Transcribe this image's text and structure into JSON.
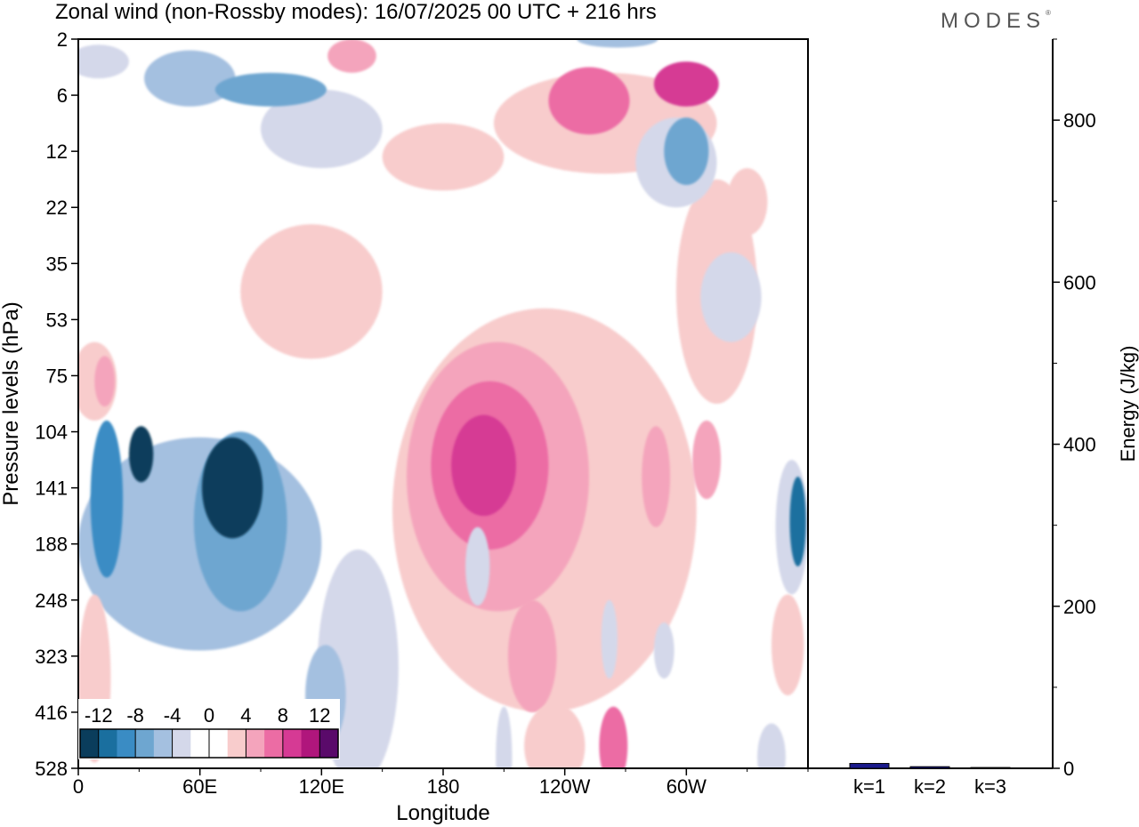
{
  "title": "Zonal wind (non-Rossby modes):  16/07/2025  00 UTC  + 216 hrs",
  "brand": "MODES",
  "brand_mark": "®",
  "chart_data": [
    {
      "type": "heatmap",
      "title": "Zonal wind (non-Rossby modes):  16/07/2025  00 UTC  + 216 hrs",
      "xlabel": "Longitude",
      "ylabel": "Pressure levels (hPa)",
      "x_ticks": [
        "0",
        "60E",
        "120E",
        "180",
        "120W",
        "60W"
      ],
      "y_ticks": [
        "2",
        "6",
        "12",
        "22",
        "35",
        "53",
        "75",
        "104",
        "141",
        "188",
        "248",
        "323",
        "416",
        "528"
      ],
      "colorbar": {
        "labels": [
          "-12",
          "-8",
          "-4",
          "0",
          "4",
          "8",
          "12"
        ],
        "colors": [
          "#0a3d5c",
          "#1a6f9f",
          "#3a8cc4",
          "#6ea6d0",
          "#a4c0e0",
          "#d4d8ea",
          "#ffffff",
          "#ffffff",
          "#f8cccc",
          "#f4a4bc",
          "#ec6ca4",
          "#d63a94",
          "#b0167c",
          "#5a0a6a"
        ]
      },
      "regions": [
        {
          "sign": "neg",
          "level": 6,
          "lon": 31,
          "lev": 7.4,
          "w": 12,
          "h": 1.0
        },
        {
          "sign": "neg",
          "level": 6,
          "lon": 76,
          "lev": 8.0,
          "w": 30,
          "h": 1.8
        },
        {
          "sign": "neg",
          "level": 4,
          "lon": 14,
          "lev": 8.2,
          "w": 16,
          "h": 2.8
        },
        {
          "sign": "neg",
          "level": 3,
          "lon": 80,
          "lev": 8.6,
          "w": 46,
          "h": 3.2
        },
        {
          "sign": "neg",
          "level": 2,
          "lon": 60,
          "lev": 9.0,
          "w": 120,
          "h": 3.8
        },
        {
          "sign": "neg",
          "level": 2,
          "lon": 122,
          "lev": 11.7,
          "w": 20,
          "h": 1.8
        },
        {
          "sign": "neg",
          "level": 1,
          "lon": 138,
          "lev": 11.2,
          "w": 40,
          "h": 4.2
        },
        {
          "sign": "neg",
          "level": 5,
          "lon": 355,
          "lev": 8.6,
          "w": 8,
          "h": 1.6
        },
        {
          "sign": "neg",
          "level": 1,
          "lon": 352,
          "lev": 8.7,
          "w": 16,
          "h": 2.4
        },
        {
          "sign": "neg",
          "level": 1,
          "lon": 197,
          "lev": 9.4,
          "w": 12,
          "h": 1.4
        },
        {
          "sign": "neg",
          "level": 1,
          "lon": 262,
          "lev": 10.7,
          "w": 8,
          "h": 1.4
        },
        {
          "sign": "neg",
          "level": 1,
          "lon": 289,
          "lev": 10.9,
          "w": 10,
          "h": 1.0
        },
        {
          "sign": "neg",
          "level": 1,
          "lon": 342,
          "lev": 12.8,
          "w": 14,
          "h": 1.2
        },
        {
          "sign": "neg",
          "level": 1,
          "lon": 210,
          "lev": 12.8,
          "w": 8,
          "h": 1.8
        },
        {
          "sign": "neg",
          "level": 1,
          "lon": 322,
          "lev": 4.6,
          "w": 30,
          "h": 1.6
        },
        {
          "sign": "neg",
          "level": 3,
          "lon": 95,
          "lev": 0.9,
          "w": 55,
          "h": 0.6
        },
        {
          "sign": "neg",
          "level": 2,
          "lon": 55,
          "lev": 0.7,
          "w": 45,
          "h": 1.0
        },
        {
          "sign": "neg",
          "level": 3,
          "lon": 300,
          "lev": 2.0,
          "w": 22,
          "h": 1.2
        },
        {
          "sign": "neg",
          "level": 1,
          "lon": 295,
          "lev": 2.2,
          "w": 40,
          "h": 1.6
        },
        {
          "sign": "neg",
          "level": 1,
          "lon": 10,
          "lev": 0.4,
          "w": 30,
          "h": 0.6
        },
        {
          "sign": "neg",
          "level": 2,
          "lon": 266,
          "lev": 0.0,
          "w": 40,
          "h": 0.3
        },
        {
          "sign": "neg",
          "level": 1,
          "lon": 120,
          "lev": 1.6,
          "w": 60,
          "h": 1.4
        },
        {
          "sign": "pos",
          "level": 4,
          "lon": 200,
          "lev": 7.6,
          "w": 32,
          "h": 1.8
        },
        {
          "sign": "pos",
          "level": 3,
          "lon": 203,
          "lev": 7.6,
          "w": 58,
          "h": 3.0
        },
        {
          "sign": "pos",
          "level": 2,
          "lon": 207,
          "lev": 7.8,
          "w": 90,
          "h": 4.8
        },
        {
          "sign": "pos",
          "level": 1,
          "lon": 230,
          "lev": 8.4,
          "w": 150,
          "h": 7.2
        },
        {
          "sign": "pos",
          "level": 1,
          "lon": 115,
          "lev": 4.5,
          "w": 70,
          "h": 2.4
        },
        {
          "sign": "pos",
          "level": 1,
          "lon": 8,
          "lev": 6.1,
          "w": 22,
          "h": 1.4
        },
        {
          "sign": "pos",
          "level": 2,
          "lon": 13,
          "lev": 6.1,
          "w": 10,
          "h": 0.9
        },
        {
          "sign": "pos",
          "level": 2,
          "lon": 224,
          "lev": 11.0,
          "w": 24,
          "h": 2.0
        },
        {
          "sign": "pos",
          "level": 1,
          "lon": 235,
          "lev": 12.6,
          "w": 30,
          "h": 1.5
        },
        {
          "sign": "pos",
          "level": 3,
          "lon": 264,
          "lev": 12.6,
          "w": 14,
          "h": 1.4
        },
        {
          "sign": "pos",
          "level": 1,
          "lon": 8,
          "lev": 11.4,
          "w": 16,
          "h": 3.0
        },
        {
          "sign": "pos",
          "level": 2,
          "lon": 310,
          "lev": 7.5,
          "w": 14,
          "h": 1.4
        },
        {
          "sign": "pos",
          "level": 1,
          "lon": 315,
          "lev": 4.5,
          "w": 40,
          "h": 4.0
        },
        {
          "sign": "pos",
          "level": 2,
          "lon": 285,
          "lev": 7.8,
          "w": 14,
          "h": 1.8
        },
        {
          "sign": "pos",
          "level": 4,
          "lon": 300,
          "lev": 0.8,
          "w": 32,
          "h": 0.8
        },
        {
          "sign": "pos",
          "level": 3,
          "lon": 252,
          "lev": 1.1,
          "w": 40,
          "h": 1.2
        },
        {
          "sign": "pos",
          "level": 1,
          "lon": 260,
          "lev": 1.5,
          "w": 110,
          "h": 1.8
        },
        {
          "sign": "pos",
          "level": 2,
          "lon": 135,
          "lev": 0.3,
          "w": 24,
          "h": 0.6
        },
        {
          "sign": "pos",
          "level": 1,
          "lon": 180,
          "lev": 2.1,
          "w": 60,
          "h": 1.2
        },
        {
          "sign": "pos",
          "level": 1,
          "lon": 330,
          "lev": 2.9,
          "w": 20,
          "h": 1.2
        },
        {
          "sign": "pos",
          "level": 1,
          "lon": 350,
          "lev": 10.8,
          "w": 16,
          "h": 1.8
        }
      ]
    },
    {
      "type": "bar",
      "categories": [
        "k=1",
        "k=2",
        "k=3"
      ],
      "values": [
        6,
        2,
        1
      ],
      "ylabel": "Energy (J/kg)",
      "ylim": [
        0,
        900
      ],
      "y_ticks": [
        0,
        200,
        400,
        600,
        800
      ],
      "bar_color": "#1a1a8c"
    }
  ]
}
